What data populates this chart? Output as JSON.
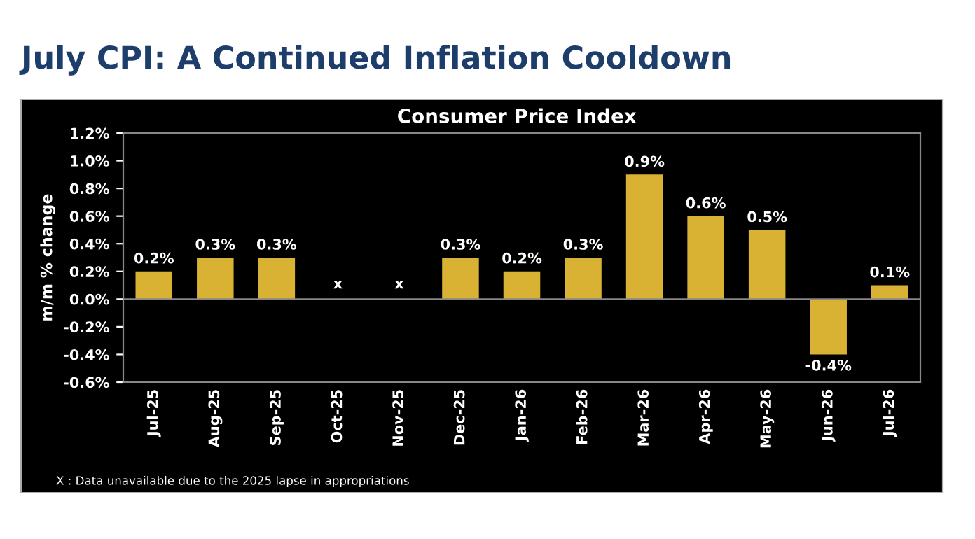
{
  "chart_data": {
    "type": "bar",
    "title": "July CPI: A Continued Inflation Cooldown",
    "subtitle": "Consumer Price Index",
    "ylabel": "m/m % change",
    "categories": [
      "Jul-25",
      "Aug-25",
      "Sep-25",
      "Oct-25",
      "Nov-25",
      "Dec-25",
      "Jan-26",
      "Feb-26",
      "Mar-26",
      "Apr-26",
      "May-26",
      "Jun-26",
      "Jul-26"
    ],
    "values": [
      0.2,
      0.3,
      0.3,
      null,
      null,
      0.3,
      0.2,
      0.3,
      0.9,
      0.6,
      0.5,
      -0.4,
      0.1
    ],
    "value_labels": [
      "0.2%",
      "0.3%",
      "0.3%",
      "x",
      "x",
      "0.3%",
      "0.2%",
      "0.3%",
      "0.9%",
      "0.6%",
      "0.5%",
      "-0.4%",
      "0.1%"
    ],
    "color": "#d9b233",
    "ylim": [
      -0.6,
      1.2
    ],
    "yticks": [
      {
        "value": -0.6,
        "label": "-0.6%"
      },
      {
        "value": -0.4,
        "label": "-0.4%"
      },
      {
        "value": -0.2,
        "label": "-0.2%"
      },
      {
        "value": 0.0,
        "label": "0.0%"
      },
      {
        "value": 0.2,
        "label": "0.2%"
      },
      {
        "value": 0.4,
        "label": "0.4%"
      },
      {
        "value": 0.6,
        "label": "0.6%"
      },
      {
        "value": 0.8,
        "label": "0.8%"
      },
      {
        "value": 1.0,
        "label": "1.0%"
      },
      {
        "value": 1.2,
        "label": "1.2%"
      }
    ],
    "grid": false,
    "ref_lines": [
      {
        "axis": "y",
        "value": 0,
        "color": "#888888"
      }
    ],
    "annotations": [
      "X : Data unavailable due to the 2025 lapse in appropriations"
    ]
  }
}
